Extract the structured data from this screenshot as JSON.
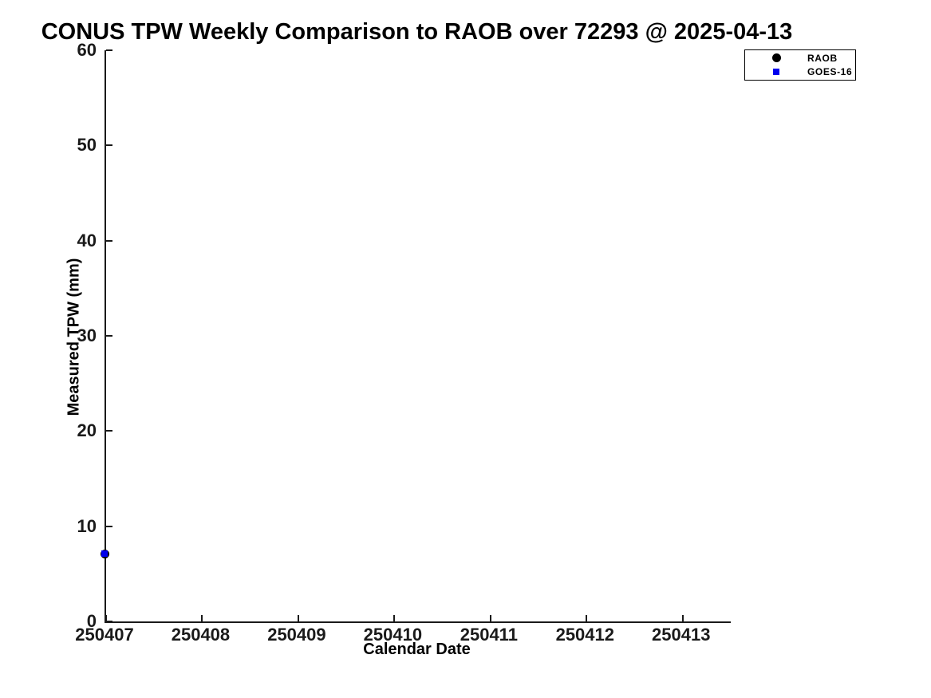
{
  "chart_data": {
    "type": "scatter",
    "title": "CONUS TPW Weekly Comparison to RAOB over 72293 @ 2025-04-13",
    "xlabel": "Calendar Date",
    "ylabel": "Measured TPW (mm)",
    "xlim": [
      250407,
      250413.5
    ],
    "ylim": [
      0,
      60
    ],
    "xticks": [
      250407,
      250408,
      250409,
      250410,
      250411,
      250412,
      250413
    ],
    "yticks": [
      0,
      10,
      20,
      30,
      40,
      50,
      60
    ],
    "grid": false,
    "axis_color": "#1a1a1a",
    "legend": {
      "position": "top-right",
      "border_color": "#000000",
      "background": "#ffffff"
    },
    "series": [
      {
        "name": "RAOB",
        "marker": "circle",
        "color": "#000000",
        "marker_size_px": 11,
        "points": [
          {
            "x": 250407,
            "y": 7.1
          }
        ]
      },
      {
        "name": "GOES-16",
        "marker": "square",
        "color": "#0000ee",
        "marker_size_px": 8,
        "points": [
          {
            "x": 250407,
            "y": 7.1
          }
        ]
      }
    ]
  }
}
